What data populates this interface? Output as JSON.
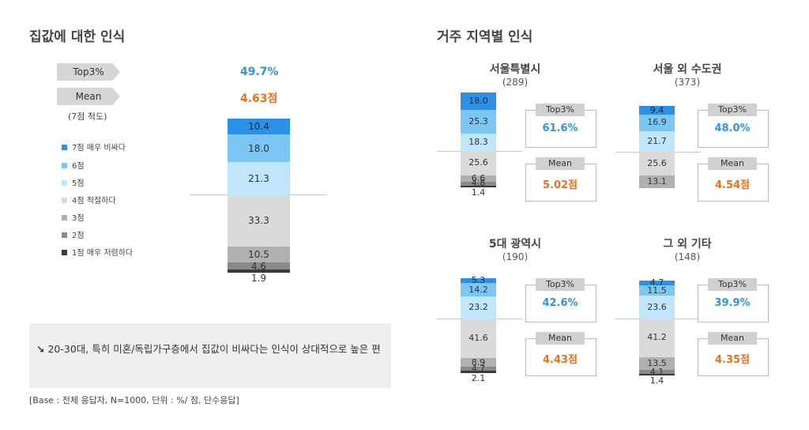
{
  "left": {
    "title": "집값에 대한 인식",
    "top3_label": "Top3%",
    "mean_label": "Mean",
    "top3_value": "49.7%",
    "mean_value": "4.63점",
    "scale_note": "(7점 척도)",
    "legend": [
      {
        "label": "7점 매우 비싸다",
        "color": "#2c91e6"
      },
      {
        "label": "6점",
        "color": "#7cc6f4"
      },
      {
        "label": "5점",
        "color": "#bfe6fb"
      },
      {
        "label": "4점 적절하다",
        "color": "#dadada"
      },
      {
        "label": "3점",
        "color": "#b0b0b0"
      },
      {
        "label": "2점",
        "color": "#8a8a8a"
      },
      {
        "label": "1점 매우 저렴하다",
        "color": "#3a3a3a"
      }
    ]
  },
  "right": {
    "title": "거주 지역별 인식"
  },
  "note": {
    "text": "20-30대, 특히 미혼/독립가구층에서 집값이 비싸다는 인식이 상대적으로 높은 편",
    "icon": "arrow-down-right-icon"
  },
  "base_text": "[Base : 전체 응답자, N=1000, 단위 : %/ 점, 단수응답]",
  "chart_data": [
    {
      "type": "bar",
      "stacked": true,
      "title": "집값에 대한 인식",
      "series": [
        {
          "name": "7점 매우 비싸다",
          "values": [
            10.4
          ]
        },
        {
          "name": "6점",
          "values": [
            18.0
          ]
        },
        {
          "name": "5점",
          "values": [
            21.3
          ]
        },
        {
          "name": "4점 적절하다",
          "values": [
            33.3
          ]
        },
        {
          "name": "3점",
          "values": [
            10.5
          ]
        },
        {
          "name": "2점",
          "values": [
            4.6
          ]
        },
        {
          "name": "1점 매우 저렴하다",
          "values": [
            1.9
          ]
        }
      ],
      "top3": "49.7%",
      "mean": "4.63점"
    },
    {
      "type": "bar",
      "stacked": true,
      "title": "서울특별시",
      "n": "(289)",
      "values": [
        18.0,
        25.3,
        18.3,
        25.6,
        6.6,
        4.8,
        1.4
      ],
      "top3": "61.6%",
      "mean": "5.02점"
    },
    {
      "type": "bar",
      "stacked": true,
      "title": "서울 외 수도권",
      "n": "(373)",
      "values": [
        9.4,
        16.9,
        21.7,
        25.6,
        13.1,
        0,
        0
      ],
      "top3": "48.0%",
      "mean": "4.54점"
    },
    {
      "type": "bar",
      "stacked": true,
      "title": "5대 광역시",
      "n": "(190)",
      "values": [
        5.3,
        14.2,
        23.2,
        41.6,
        8.9,
        4.7,
        2.1
      ],
      "top3": "42.6%",
      "mean": "4.43점"
    },
    {
      "type": "bar",
      "stacked": true,
      "title": "그 외 기타",
      "n": "(148)",
      "values": [
        4.7,
        11.5,
        23.6,
        41.2,
        13.5,
        4.1,
        1.4
      ],
      "top3": "39.9%",
      "mean": "4.35점"
    }
  ]
}
